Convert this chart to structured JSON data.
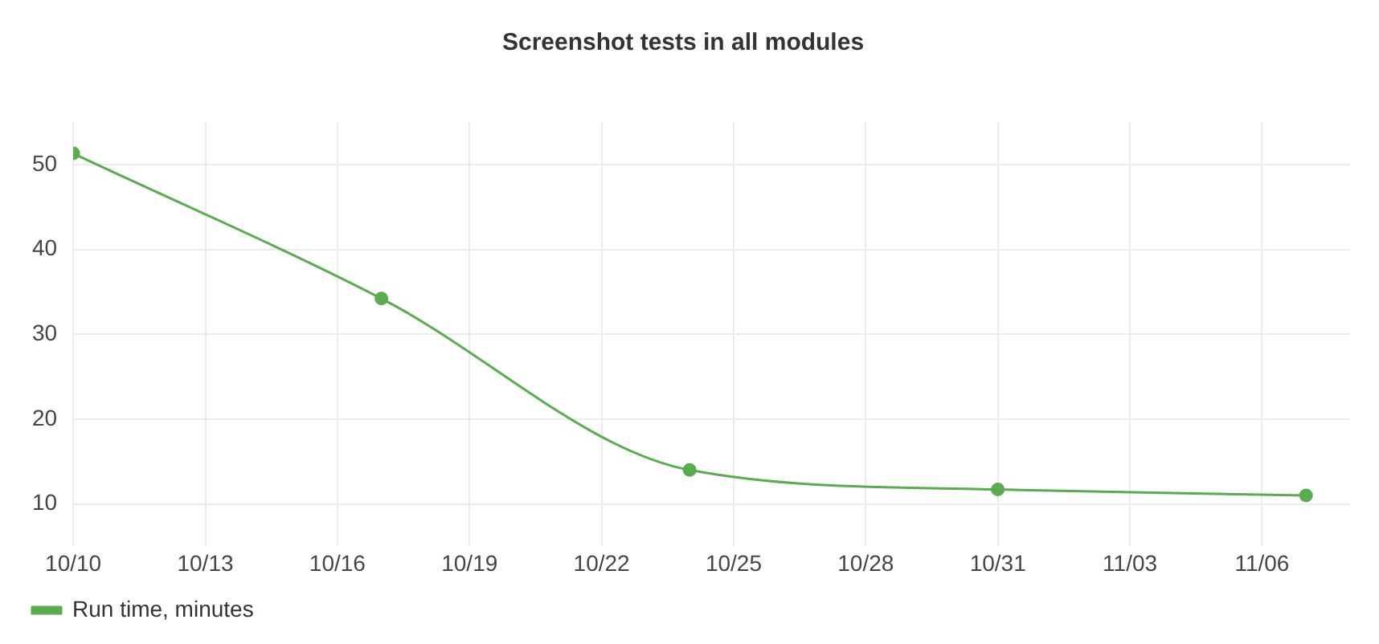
{
  "chart_data": {
    "type": "line",
    "title": "Screenshot tests in all modules",
    "x": [
      "--10-10",
      "--10-17",
      "--10-24",
      "--10-31",
      "--11-07"
    ],
    "series": [
      {
        "name": "Run time, minutes",
        "color": "#5aad4e",
        "values": [
          51.3,
          34.2,
          14,
          11.7,
          11
        ]
      }
    ],
    "xlim": [
      "--10-10",
      "--11-08"
    ],
    "xticks": [
      {
        "value": "--10-10",
        "label": "10/10"
      },
      {
        "value": "--10-13",
        "label": "10/13"
      },
      {
        "value": "--10-16",
        "label": "10/16"
      },
      {
        "value": "--10-19",
        "label": "10/19"
      },
      {
        "value": "--10-22",
        "label": "10/22"
      },
      {
        "value": "--10-25",
        "label": "10/25"
      },
      {
        "value": "--10-28",
        "label": "10/28"
      },
      {
        "value": "--10-31",
        "label": "10/31"
      },
      {
        "value": "--11-03",
        "label": "11/03"
      },
      {
        "value": "--11-06",
        "label": "11/06"
      }
    ],
    "ylim": [
      5,
      55
    ],
    "yticks": [
      10,
      20,
      30,
      40,
      50
    ],
    "grid": true,
    "legend": "bottom left",
    "marker": "circle",
    "line_style": "solid"
  }
}
